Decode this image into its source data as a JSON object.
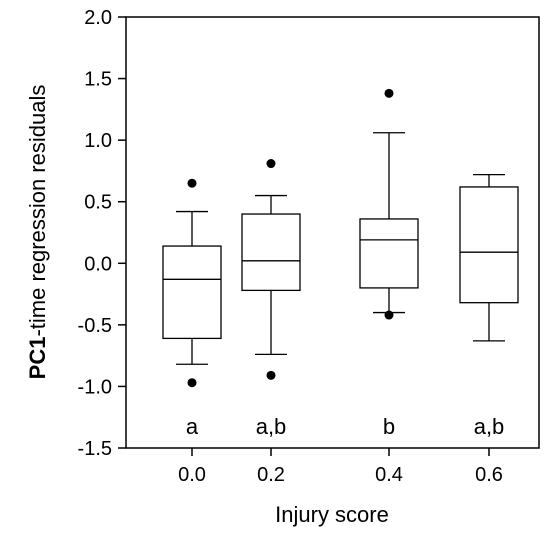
{
  "chart_data": {
    "type": "box",
    "xlabel": "Injury score",
    "ylabel": {
      "bold_part": "PC1",
      "rest": "-time regression residuals"
    },
    "ylim": [
      -1.5,
      2.0
    ],
    "yticks": [
      "-1.5",
      "-1.0",
      "-0.5",
      "0.0",
      "0.5",
      "1.0",
      "1.5",
      "2.0"
    ],
    "categories": [
      "0.0",
      "0.2",
      "0.4",
      "0.6"
    ],
    "grid": false,
    "boxes": [
      {
        "category": "0.0",
        "whisker_low": -0.82,
        "q1": -0.61,
        "median": -0.13,
        "q3": 0.14,
        "whisker_high": 0.42,
        "outliers": [
          0.65,
          -0.97
        ],
        "letter": "a"
      },
      {
        "category": "0.2",
        "whisker_low": -0.74,
        "q1": -0.22,
        "median": 0.02,
        "q3": 0.4,
        "whisker_high": 0.55,
        "outliers": [
          0.81,
          -0.91
        ],
        "letter": "a,b"
      },
      {
        "category": "0.4",
        "whisker_low": -0.4,
        "q1": -0.2,
        "median": 0.19,
        "q3": 0.36,
        "whisker_high": 1.06,
        "outliers": [
          1.38,
          -0.42
        ],
        "letter": "b"
      },
      {
        "category": "0.6",
        "whisker_low": -0.63,
        "q1": -0.32,
        "median": 0.09,
        "q3": 0.62,
        "whisker_high": 0.72,
        "outliers": [],
        "letter": "a,b"
      }
    ],
    "colors": {
      "line": "#000000",
      "box_fill": "#ffffff",
      "outlier": "#000000"
    }
  }
}
